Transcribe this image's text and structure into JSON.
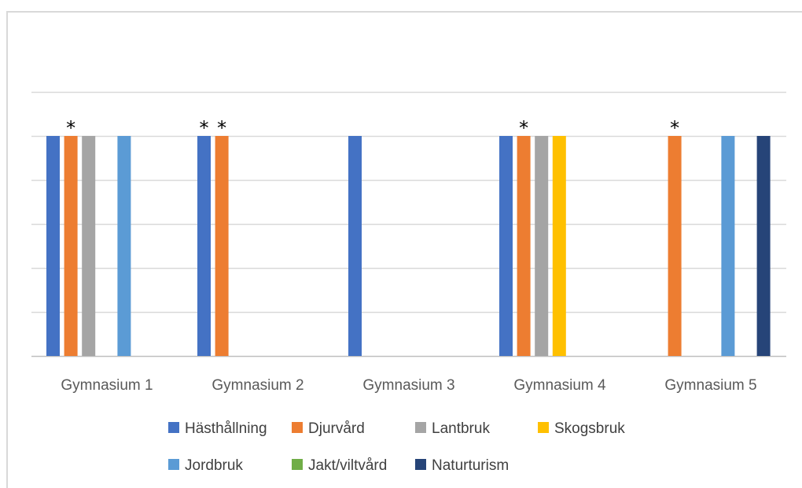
{
  "chart_data": {
    "type": "bar",
    "categories": [
      "Gymnasium 1",
      "Gymnasium 2",
      "Gymnasium 3",
      "Gymnasium 4",
      "Gymnasium 5"
    ],
    "series": [
      {
        "name": "Hästhållning",
        "color": "#4472C4",
        "values": [
          1,
          1,
          1,
          1,
          0
        ]
      },
      {
        "name": "Djurvård",
        "color": "#ED7D31",
        "values": [
          1,
          1,
          0,
          1,
          1
        ]
      },
      {
        "name": "Lantbruk",
        "color": "#A5A5A5",
        "values": [
          1,
          0,
          0,
          1,
          0
        ]
      },
      {
        "name": "Skogsbruk",
        "color": "#FFC000",
        "values": [
          0,
          0,
          0,
          1,
          0
        ]
      },
      {
        "name": "Jordbruk",
        "color": "#5B9BD5",
        "values": [
          1,
          0,
          0,
          0,
          1
        ]
      },
      {
        "name": "Jakt/viltvård",
        "color": "#70AD47",
        "values": [
          0,
          0,
          0,
          0,
          0
        ]
      },
      {
        "name": "Naturturism",
        "color": "#264478",
        "values": [
          0,
          0,
          0,
          0,
          1
        ]
      }
    ],
    "ylim": [
      0,
      1.2
    ],
    "grid": true,
    "legend": "bottom",
    "annotations": [
      {
        "category": "Gymnasium 1",
        "series": "Djurvård",
        "text": "*"
      },
      {
        "category": "Gymnasium 2",
        "series": "Hästhållning",
        "text": "*"
      },
      {
        "category": "Gymnasium 2",
        "series": "Djurvård",
        "text": "*"
      },
      {
        "category": "Gymnasium 4",
        "series": "Djurvård",
        "text": "*"
      },
      {
        "category": "Gymnasium 5",
        "series": "Djurvård",
        "text": "*"
      }
    ]
  }
}
